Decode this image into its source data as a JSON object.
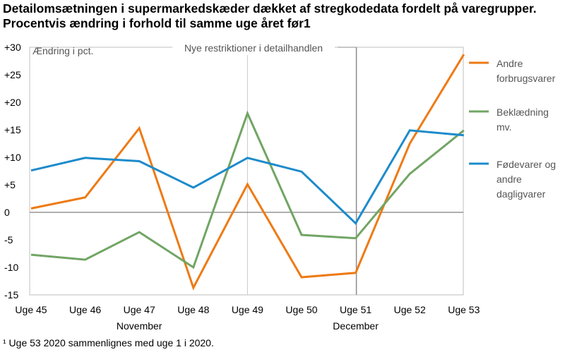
{
  "title": "Detailomsætningen i supermarkedskæder dækket af stregkodedata fordelt på varegrupper. Procentvis ændring i forhold til samme uge året før1",
  "footnote": "¹ Uge 53 2020 sammenlignes med uge 1 i 2020.",
  "chart_data": {
    "type": "line",
    "title": "Detailomsætningen i supermarkedskæder dækket af stregkodedata fordelt på varegrupper. Procentvis ændring i forhold til samme uge året før1",
    "ylabel": "Ændring i pct.",
    "xlabel": "",
    "categories": [
      "Uge 45",
      "Uge 46",
      "Uge 47",
      "Uge 48",
      "Uge 49",
      "Uge 50",
      "Uge 51",
      "Uge 52",
      "Uge 53"
    ],
    "month_labels": [
      {
        "label": "November",
        "at": 2
      },
      {
        "label": "December",
        "at": 6
      }
    ],
    "ylim": [
      -15,
      30
    ],
    "yticks": [
      -15,
      -10,
      -5,
      0,
      5,
      10,
      15,
      20,
      25,
      30
    ],
    "ytick_labels": [
      "-15",
      "-10",
      "-5",
      "0",
      "+5",
      "+10",
      "+15",
      "+20",
      "+25",
      "+30"
    ],
    "annotation": {
      "text": "Nye restriktioner i detailhandlen",
      "at": 6
    },
    "grid": {
      "vertical_at": 4
    },
    "legend_position": "right",
    "series": [
      {
        "name": "Andre forbrugsvarer",
        "legend_lines": [
          "Andre",
          "forbrugsvarer"
        ],
        "color": "#ee7a14",
        "values": [
          0.7,
          2.7,
          15.3,
          -13.7,
          5.1,
          -11.8,
          -11.0,
          12.5,
          28.7
        ]
      },
      {
        "name": "Beklædning mv.",
        "legend_lines": [
          "Beklædning",
          "mv."
        ],
        "color": "#71a564",
        "values": [
          -7.7,
          -8.6,
          -3.6,
          -10.0,
          18.0,
          -4.1,
          -4.7,
          7.0,
          14.9
        ]
      },
      {
        "name": "Fødevarer og andre dagligvarer",
        "legend_lines": [
          "Fødevarer og",
          "andre",
          "dagligvarer"
        ],
        "color": "#1d8bcb",
        "values": [
          7.6,
          9.9,
          9.3,
          4.5,
          9.9,
          7.4,
          -2.0,
          14.9,
          14.0
        ]
      }
    ]
  }
}
